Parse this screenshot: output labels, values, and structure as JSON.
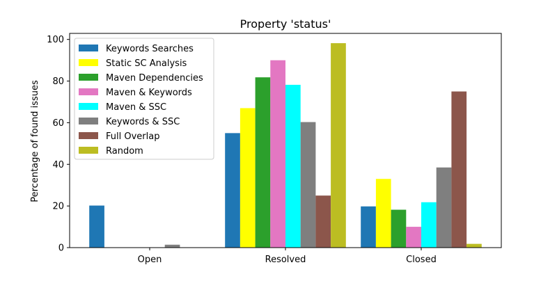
{
  "chart_data": {
    "type": "bar",
    "title": "Property 'status'",
    "xlabel": "",
    "ylabel": "Percentage of found issues",
    "ylim": [
      0,
      102.9
    ],
    "yticks": [
      0,
      20,
      40,
      60,
      80,
      100
    ],
    "categories": [
      "Open",
      "Resolved",
      "Closed"
    ],
    "legend_position": "top-left",
    "grid": false,
    "series": [
      {
        "name": "Keywords Searches",
        "color": "#1f77b4",
        "values": [
          20.2,
          55.0,
          19.8
        ]
      },
      {
        "name": "Static SC Analysis",
        "color": "#ffff00",
        "values": [
          0,
          67.0,
          33.0
        ]
      },
      {
        "name": "Maven Dependencies",
        "color": "#2ca02c",
        "values": [
          0,
          81.8,
          18.2
        ]
      },
      {
        "name": "Maven & Keywords",
        "color": "#e377c2",
        "values": [
          0,
          90.0,
          10.0
        ]
      },
      {
        "name": "Maven & SSC",
        "color": "#00ffff",
        "values": [
          0,
          78.2,
          21.8
        ]
      },
      {
        "name": "Keywords & SSC",
        "color": "#7f7f7f",
        "values": [
          1.4,
          60.3,
          38.5
        ]
      },
      {
        "name": "Full Overlap",
        "color": "#8c564b",
        "values": [
          0,
          25.0,
          75.0
        ]
      },
      {
        "name": "Random",
        "color": "#bcbd22",
        "values": [
          0,
          98.2,
          1.8
        ]
      }
    ]
  }
}
